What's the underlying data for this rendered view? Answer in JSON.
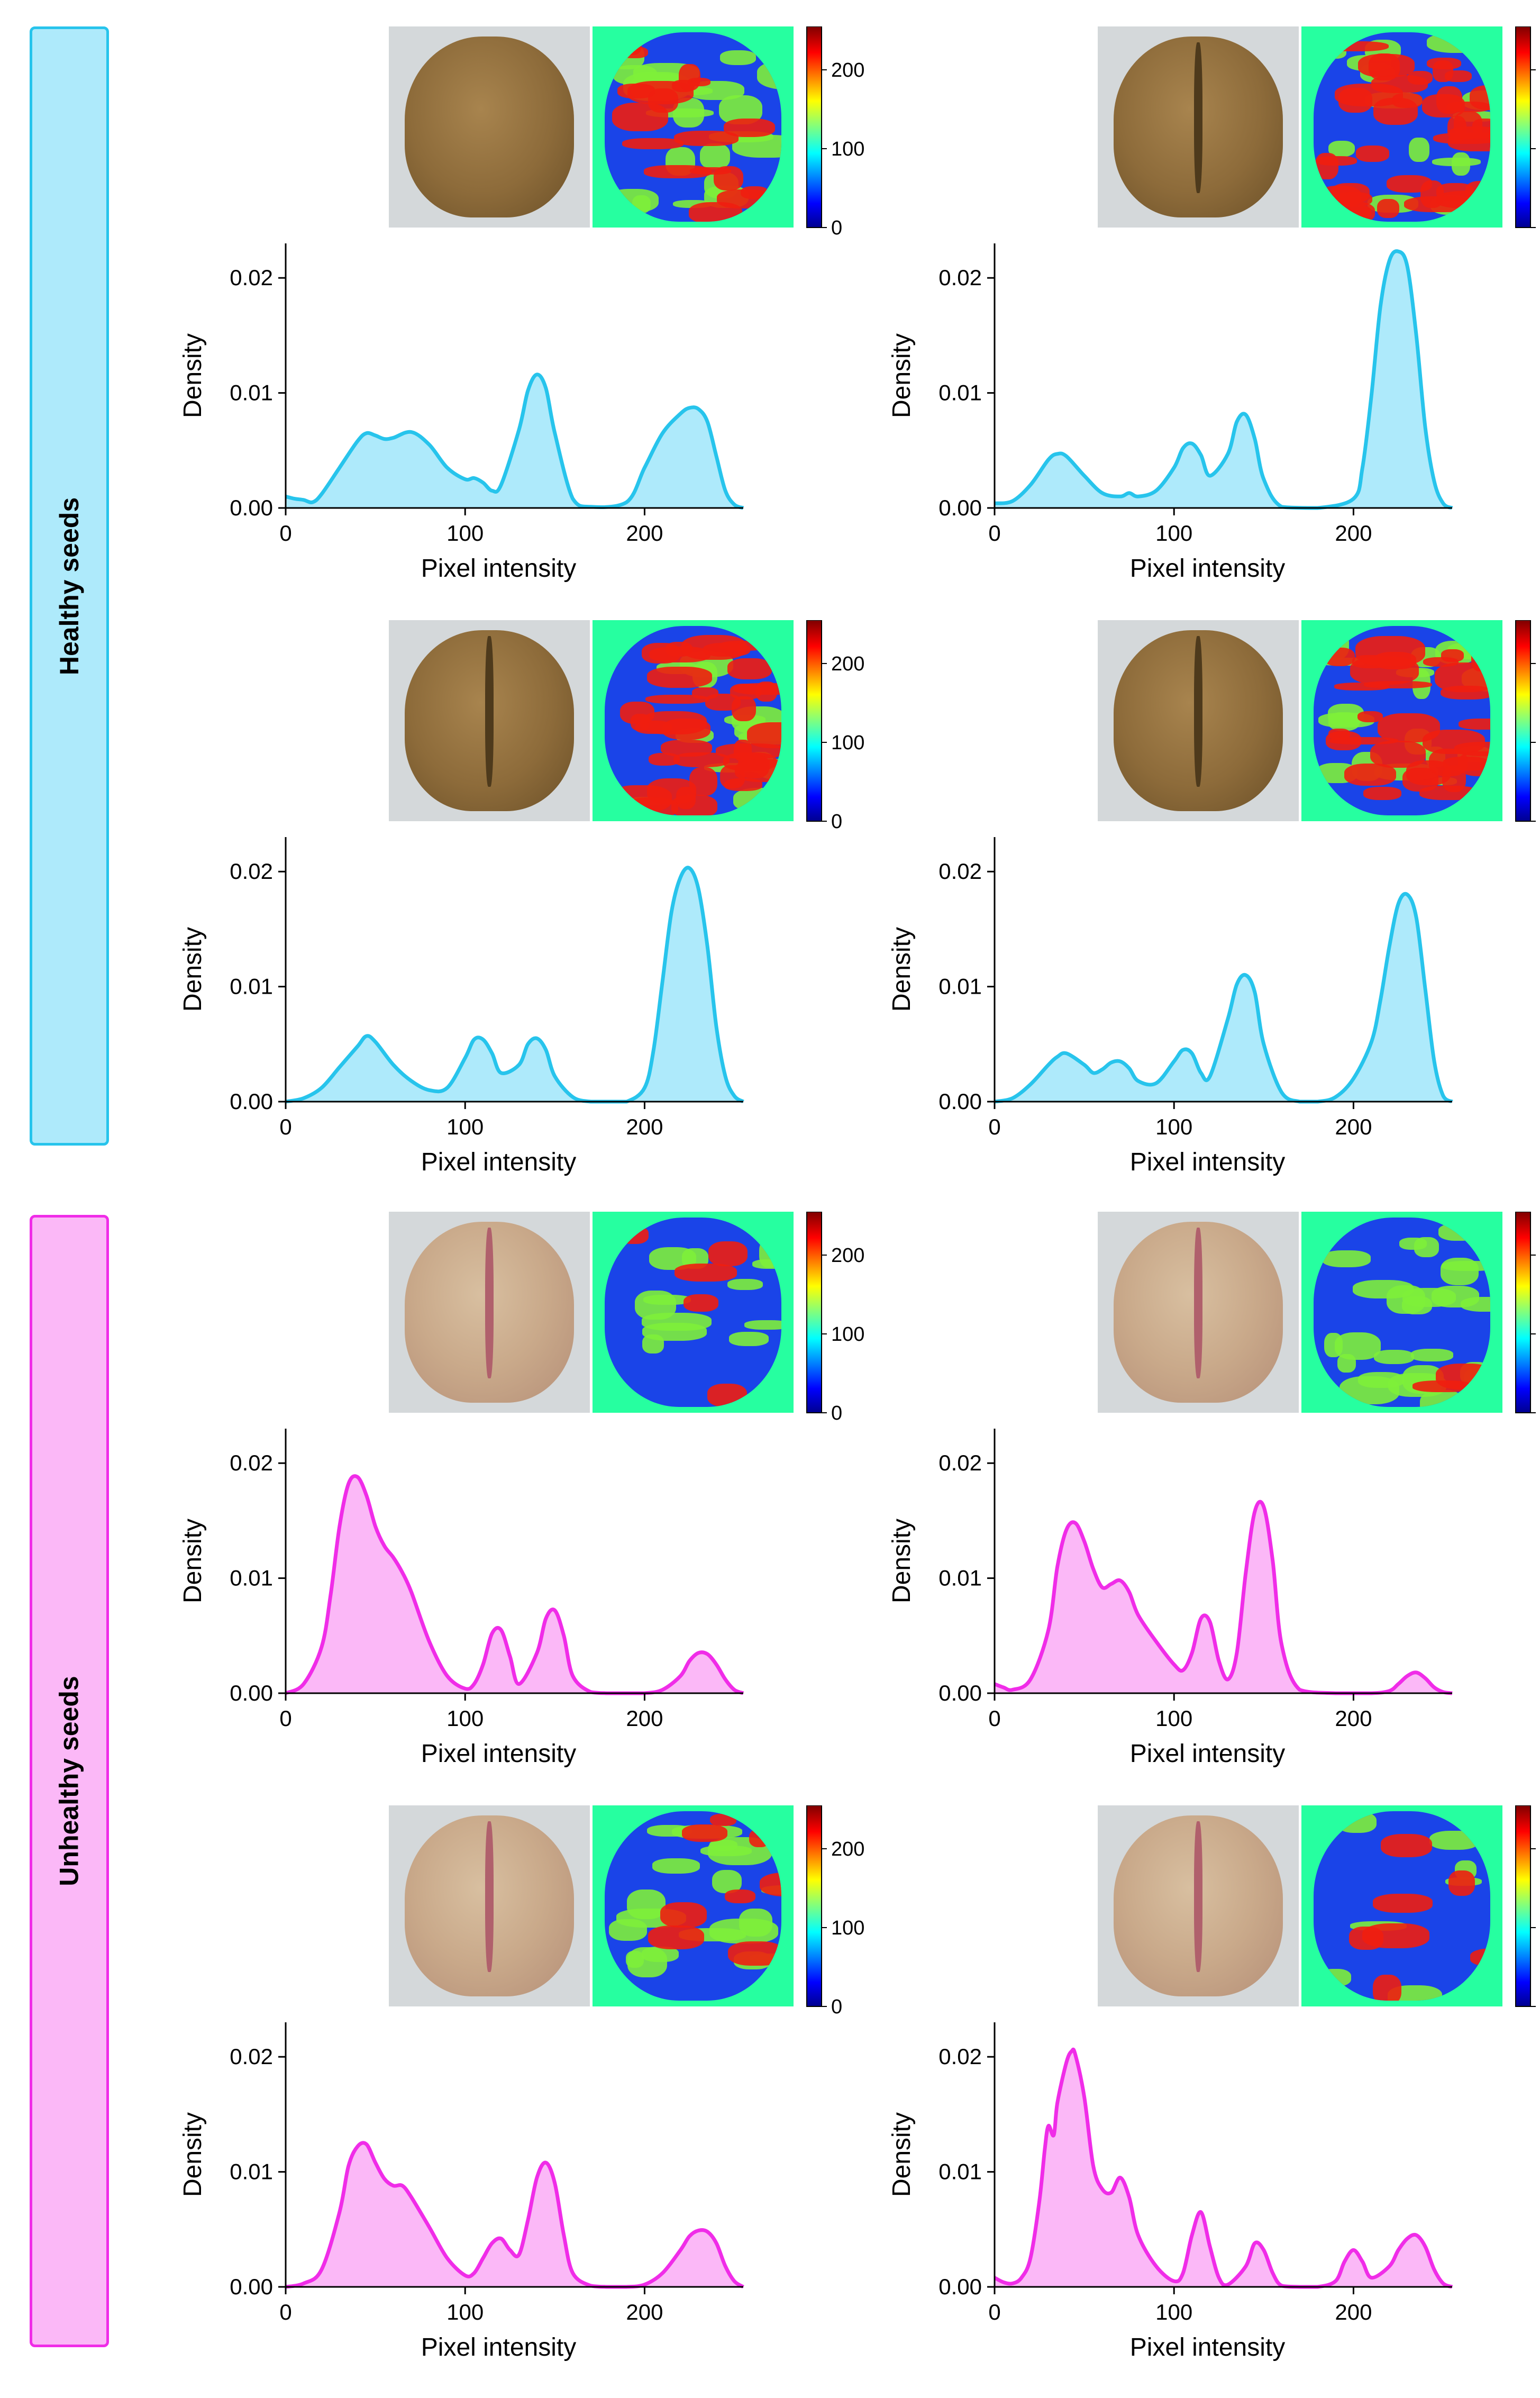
{
  "figure": {
    "groups": [
      {
        "label": "Healthy seeds",
        "color": "#27c4ec",
        "fill": "#aeeafb"
      },
      {
        "label": "Unhealthy seeds",
        "color": "#f02ce8",
        "fill": "#fbb8f7"
      }
    ],
    "colorbar": {
      "ticks": [
        "0",
        "100",
        "200"
      ]
    },
    "colormap_name": "jet"
  },
  "chart_data": [
    {
      "type": "area",
      "group": "Healthy seeds",
      "seed_view": "side",
      "xlabel": "Pixel intensity",
      "ylabel": "Density",
      "xlim": [
        0,
        255
      ],
      "ylim": [
        0,
        0.023
      ],
      "xticks": [
        "0",
        "100",
        "200"
      ],
      "yticks": [
        "0.00",
        "0.01",
        "0.02"
      ],
      "x": [
        0,
        5,
        10,
        15,
        20,
        30,
        40,
        45,
        50,
        55,
        60,
        70,
        80,
        90,
        100,
        105,
        110,
        115,
        120,
        130,
        135,
        140,
        145,
        150,
        160,
        170,
        190,
        200,
        210,
        220,
        225,
        230,
        235,
        240,
        245,
        250,
        255
      ],
      "y": [
        0.001,
        0.0008,
        0.0007,
        0.0005,
        0.0012,
        0.0035,
        0.0058,
        0.0065,
        0.0063,
        0.006,
        0.0061,
        0.0066,
        0.0055,
        0.0035,
        0.0025,
        0.0026,
        0.0022,
        0.0015,
        0.002,
        0.0068,
        0.0102,
        0.0116,
        0.0104,
        0.0065,
        0.0008,
        0.0001,
        0.0005,
        0.0035,
        0.0065,
        0.0082,
        0.0087,
        0.0086,
        0.0075,
        0.0045,
        0.0015,
        0.0003,
        0.0
      ]
    },
    {
      "type": "area",
      "group": "Healthy seeds",
      "seed_view": "crease",
      "xlabel": "Pixel intensity",
      "ylabel": "Density",
      "xlim": [
        0,
        255
      ],
      "ylim": [
        0,
        0.023
      ],
      "xticks": [
        "0",
        "100",
        "200"
      ],
      "yticks": [
        "0.00",
        "0.01",
        "0.02"
      ],
      "x": [
        0,
        10,
        20,
        30,
        35,
        40,
        50,
        60,
        70,
        75,
        80,
        90,
        100,
        105,
        110,
        115,
        120,
        130,
        135,
        140,
        145,
        150,
        160,
        180,
        200,
        205,
        210,
        215,
        220,
        225,
        230,
        235,
        240,
        245,
        250,
        255
      ],
      "y": [
        0.0004,
        0.0006,
        0.002,
        0.0042,
        0.0047,
        0.0045,
        0.0028,
        0.0013,
        0.001,
        0.0013,
        0.001,
        0.0015,
        0.0035,
        0.0052,
        0.0056,
        0.0046,
        0.0028,
        0.0047,
        0.0075,
        0.0081,
        0.006,
        0.0025,
        0.0001,
        0.0,
        0.0008,
        0.0035,
        0.0098,
        0.0175,
        0.0215,
        0.0223,
        0.021,
        0.015,
        0.007,
        0.0023,
        0.0004,
        0.0
      ]
    },
    {
      "type": "area",
      "group": "Healthy seeds",
      "seed_view": "crease",
      "xlabel": "Pixel intensity",
      "ylabel": "Density",
      "xlim": [
        0,
        255
      ],
      "ylim": [
        0,
        0.023
      ],
      "xticks": [
        "0",
        "100",
        "200"
      ],
      "yticks": [
        "0.00",
        "0.01",
        "0.02"
      ],
      "x": [
        0,
        10,
        20,
        30,
        40,
        45,
        50,
        60,
        70,
        80,
        90,
        100,
        105,
        110,
        115,
        120,
        130,
        135,
        140,
        145,
        150,
        160,
        170,
        180,
        190,
        200,
        205,
        210,
        215,
        220,
        225,
        230,
        235,
        240,
        245,
        250,
        255
      ],
      "y": [
        0.0,
        0.0003,
        0.0012,
        0.003,
        0.0048,
        0.0057,
        0.0052,
        0.0032,
        0.0018,
        0.001,
        0.0012,
        0.0038,
        0.0054,
        0.0054,
        0.0042,
        0.0025,
        0.0032,
        0.005,
        0.0055,
        0.0045,
        0.0022,
        0.0004,
        0.0,
        0.0,
        0.0,
        0.0012,
        0.0045,
        0.0105,
        0.0165,
        0.0195,
        0.0203,
        0.0185,
        0.0135,
        0.0065,
        0.0022,
        0.0005,
        0.0
      ]
    },
    {
      "type": "area",
      "group": "Healthy seeds",
      "seed_view": "crease",
      "xlabel": "Pixel intensity",
      "ylabel": "Density",
      "xlim": [
        0,
        255
      ],
      "ylim": [
        0,
        0.023
      ],
      "xticks": [
        "0",
        "100",
        "200"
      ],
      "yticks": [
        "0.00",
        "0.01",
        "0.02"
      ],
      "x": [
        0,
        10,
        20,
        30,
        35,
        40,
        50,
        55,
        60,
        65,
        70,
        75,
        80,
        90,
        100,
        105,
        110,
        115,
        120,
        130,
        135,
        140,
        145,
        150,
        160,
        170,
        180,
        190,
        200,
        210,
        215,
        220,
        225,
        230,
        235,
        240,
        245,
        250,
        255
      ],
      "y": [
        0.0,
        0.0003,
        0.0015,
        0.0032,
        0.0039,
        0.0042,
        0.0032,
        0.0025,
        0.0028,
        0.0034,
        0.0035,
        0.0029,
        0.0018,
        0.0016,
        0.0035,
        0.0045,
        0.0042,
        0.0025,
        0.0022,
        0.0072,
        0.0102,
        0.011,
        0.0095,
        0.005,
        0.0008,
        0.0,
        0.0,
        0.0004,
        0.002,
        0.0052,
        0.0088,
        0.0135,
        0.0172,
        0.018,
        0.016,
        0.0098,
        0.0035,
        0.0005,
        0.0
      ]
    },
    {
      "type": "area",
      "group": "Unhealthy seeds",
      "seed_view": "crease",
      "xlabel": "Pixel intensity",
      "ylabel": "Density",
      "xlim": [
        0,
        255
      ],
      "ylim": [
        0,
        0.023
      ],
      "xticks": [
        "0",
        "100",
        "200"
      ],
      "yticks": [
        "0.00",
        "0.01",
        "0.02"
      ],
      "x": [
        0,
        10,
        20,
        25,
        30,
        35,
        40,
        45,
        50,
        55,
        60,
        65,
        70,
        80,
        90,
        100,
        105,
        110,
        115,
        120,
        125,
        130,
        140,
        145,
        150,
        155,
        160,
        170,
        180,
        190,
        200,
        210,
        220,
        225,
        230,
        235,
        240,
        245,
        250,
        255
      ],
      "y": [
        0.0,
        0.0008,
        0.004,
        0.0085,
        0.0145,
        0.0182,
        0.0188,
        0.0172,
        0.0145,
        0.0128,
        0.0118,
        0.0105,
        0.0088,
        0.0045,
        0.0015,
        0.0004,
        0.0008,
        0.0025,
        0.0052,
        0.0055,
        0.0032,
        0.0008,
        0.0035,
        0.0065,
        0.0072,
        0.005,
        0.0015,
        0.0001,
        0.0,
        0.0,
        0.0,
        0.0003,
        0.0015,
        0.0028,
        0.0035,
        0.0034,
        0.0025,
        0.0012,
        0.0003,
        0.0
      ]
    },
    {
      "type": "area",
      "group": "Unhealthy seeds",
      "seed_view": "crease",
      "xlabel": "Pixel intensity",
      "ylabel": "Density",
      "xlim": [
        0,
        255
      ],
      "ylim": [
        0,
        0.023
      ],
      "xticks": [
        "0",
        "100",
        "200"
      ],
      "yticks": [
        "0.00",
        "0.01",
        "0.02"
      ],
      "x": [
        0,
        5,
        10,
        20,
        30,
        35,
        40,
        45,
        50,
        55,
        60,
        65,
        70,
        75,
        80,
        90,
        100,
        105,
        110,
        115,
        120,
        125,
        130,
        135,
        140,
        145,
        150,
        155,
        160,
        170,
        190,
        210,
        220,
        225,
        230,
        235,
        240,
        245,
        250,
        255
      ],
      "y": [
        0.0008,
        0.0005,
        0.0003,
        0.0012,
        0.0055,
        0.011,
        0.0142,
        0.0148,
        0.0132,
        0.0108,
        0.0092,
        0.0095,
        0.0098,
        0.0088,
        0.0068,
        0.0045,
        0.0025,
        0.002,
        0.0035,
        0.0065,
        0.0062,
        0.0028,
        0.0012,
        0.0035,
        0.0105,
        0.0158,
        0.0162,
        0.0115,
        0.0042,
        0.0003,
        0.0,
        0.0,
        0.0002,
        0.0008,
        0.0015,
        0.0018,
        0.0013,
        0.0005,
        0.0001,
        0.0
      ]
    },
    {
      "type": "area",
      "group": "Unhealthy seeds",
      "seed_view": "crease",
      "xlabel": "Pixel intensity",
      "ylabel": "Density",
      "xlim": [
        0,
        255
      ],
      "ylim": [
        0,
        0.023
      ],
      "xticks": [
        "0",
        "100",
        "200"
      ],
      "yticks": [
        "0.00",
        "0.01",
        "0.02"
      ],
      "x": [
        0,
        10,
        20,
        30,
        35,
        40,
        45,
        50,
        55,
        60,
        65,
        70,
        80,
        90,
        100,
        105,
        110,
        115,
        120,
        125,
        130,
        135,
        140,
        145,
        150,
        155,
        160,
        170,
        180,
        190,
        200,
        210,
        220,
        225,
        230,
        235,
        240,
        245,
        250,
        255
      ],
      "y": [
        0.0,
        0.0003,
        0.0015,
        0.0065,
        0.0105,
        0.0122,
        0.0124,
        0.0108,
        0.0094,
        0.0088,
        0.0088,
        0.0078,
        0.0052,
        0.0025,
        0.001,
        0.0012,
        0.0025,
        0.0038,
        0.0042,
        0.0032,
        0.0028,
        0.0058,
        0.0095,
        0.0108,
        0.009,
        0.0045,
        0.0012,
        0.0001,
        0.0,
        0.0,
        0.0002,
        0.0012,
        0.0032,
        0.0044,
        0.0049,
        0.0048,
        0.0038,
        0.0018,
        0.0005,
        0.0
      ]
    },
    {
      "type": "area",
      "group": "Unhealthy seeds",
      "seed_view": "crease",
      "xlabel": "Pixel intensity",
      "ylabel": "Density",
      "xlim": [
        0,
        255
      ],
      "ylim": [
        0,
        0.023
      ],
      "xticks": [
        "0",
        "100",
        "200"
      ],
      "yticks": [
        "0.00",
        "0.01",
        "0.02"
      ],
      "x": [
        0,
        5,
        10,
        15,
        20,
        25,
        28,
        30,
        33,
        35,
        40,
        43,
        45,
        50,
        55,
        60,
        65,
        70,
        75,
        80,
        90,
        100,
        105,
        110,
        115,
        120,
        125,
        130,
        140,
        145,
        150,
        155,
        160,
        170,
        180,
        190,
        195,
        200,
        205,
        210,
        220,
        225,
        230,
        235,
        240,
        245,
        250,
        255
      ],
      "y": [
        0.0008,
        0.0004,
        0.0003,
        0.0008,
        0.0025,
        0.0075,
        0.012,
        0.014,
        0.0132,
        0.016,
        0.0195,
        0.0205,
        0.0202,
        0.0165,
        0.0105,
        0.0085,
        0.0082,
        0.0095,
        0.0078,
        0.0045,
        0.0018,
        0.0005,
        0.0012,
        0.0045,
        0.0065,
        0.0035,
        0.0008,
        0.0002,
        0.0018,
        0.0038,
        0.0032,
        0.0012,
        0.0001,
        0.0,
        0.0,
        0.0005,
        0.0022,
        0.0032,
        0.0022,
        0.0008,
        0.0018,
        0.0032,
        0.0042,
        0.0045,
        0.0035,
        0.0015,
        0.0003,
        0.0
      ]
    }
  ]
}
